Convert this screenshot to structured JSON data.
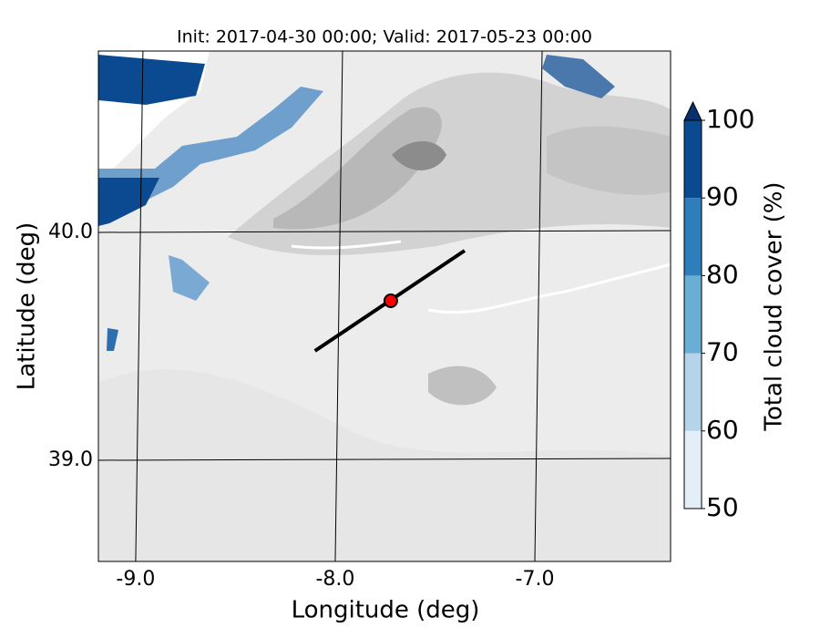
{
  "chart_data": {
    "type": "map",
    "title": "Init: 2017-04-30 00:00; Valid: 2017-05-23 00:00",
    "xlabel": "Longitude (deg)",
    "ylabel": "Latitude (deg)",
    "xlim": [
      -9.205,
      -6.338
    ],
    "ylim": [
      38.556,
      40.796
    ],
    "xticks": [
      {
        "value": -9,
        "label": "-9.0"
      },
      {
        "value": -8,
        "label": "-8.0"
      },
      {
        "value": -7,
        "label": "-7.0"
      }
    ],
    "yticks": [
      {
        "value": 39,
        "label": "39.0"
      },
      {
        "value": 40,
        "label": "40.0"
      }
    ],
    "grid": true,
    "line": {
      "x": [
        -8.12,
        -7.37
      ],
      "y": [
        39.48,
        39.92
      ],
      "color": "#000000"
    },
    "marker": {
      "x": -7.74,
      "y": 39.7,
      "color": "#ff0000"
    },
    "colorbar": {
      "label": "Total cloud cover (%)",
      "lim": [
        50,
        100
      ],
      "ticks": [
        50,
        60,
        70,
        80,
        90,
        100
      ],
      "colors": [
        "#e3eef9",
        "#b5d4ea",
        "#6aaed6",
        "#2e7ebc",
        "#0b4a90"
      ],
      "extend_color": "#08306b"
    }
  }
}
